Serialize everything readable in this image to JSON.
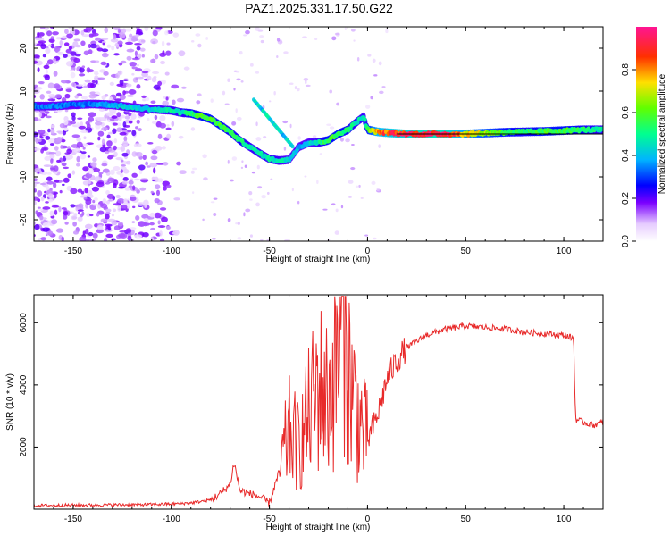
{
  "title": "PAZ1.2025.331.17.50.G22",
  "chart_data": [
    {
      "type": "heatmap",
      "title": "PAZ1.2025.331.17.50.G22",
      "xlabel": "Height of straight line (km)",
      "ylabel": "Frequency (Hz)",
      "xlim": [
        -170,
        120
      ],
      "ylim": [
        -25,
        25
      ],
      "xticks": [
        -150,
        -100,
        -50,
        0,
        50,
        100
      ],
      "yticks": [
        -20,
        -10,
        0,
        10,
        20
      ],
      "colorbar": {
        "label": "Normalized spectral amplitude",
        "range": [
          0,
          1
        ],
        "ticks": [
          0.0,
          0.2,
          0.4,
          0.6,
          0.8
        ],
        "colors": [
          "#ffffff",
          "#d9b3ff",
          "#7a00ff",
          "#0000ff",
          "#00c8ff",
          "#00ff80",
          "#c8ff00",
          "#ffc800",
          "#ff3000",
          "#ff2080"
        ]
      },
      "ridge": {
        "x": [
          -170,
          -160,
          -150,
          -140,
          -130,
          -120,
          -110,
          -100,
          -95,
          -90,
          -85,
          -80,
          -75,
          -70,
          -65,
          -60,
          -55,
          -50,
          -45,
          -40,
          -35,
          -30,
          -25,
          -20,
          -15,
          -10,
          -5,
          -2,
          0,
          5,
          10,
          20,
          30,
          40,
          50,
          60,
          70,
          80,
          90,
          100,
          110,
          120
        ],
        "y": [
          6.5,
          6.5,
          6.8,
          7,
          6.8,
          6.2,
          5.8,
          5.5,
          5,
          4.8,
          4.2,
          3.5,
          2,
          0.5,
          -1.5,
          -3,
          -4.5,
          -5.8,
          -6.2,
          -6,
          -3,
          -2,
          -2,
          -1.5,
          0,
          1,
          3,
          4,
          1,
          0.5,
          0.3,
          0,
          0,
          0,
          0,
          0.2,
          0.4,
          0.5,
          0.6,
          0.8,
          1,
          1
        ],
        "amp": [
          0.35,
          0.35,
          0.35,
          0.35,
          0.4,
          0.45,
          0.45,
          0.5,
          0.5,
          0.55,
          0.6,
          0.6,
          0.6,
          0.55,
          0.55,
          0.5,
          0.5,
          0.5,
          0.5,
          0.45,
          0.4,
          0.45,
          0.5,
          0.6,
          0.6,
          0.55,
          0.5,
          0.5,
          0.6,
          0.85,
          0.9,
          0.95,
          1,
          1,
          0.8,
          0.7,
          0.6,
          0.55,
          0.6,
          0.6,
          0.55,
          0.5
        ]
      },
      "noise_region_x": [
        -170,
        -90
      ]
    },
    {
      "type": "line",
      "xlabel": "Height of straight line (km)",
      "ylabel": "SNR (10 * v/v)",
      "xlim": [
        -170,
        120
      ],
      "ylim": [
        0,
        6900
      ],
      "xticks": [
        -150,
        -100,
        -50,
        0,
        50,
        100
      ],
      "yticks": [
        2000,
        4000,
        6000
      ],
      "color": "#e82a2a",
      "series": [
        {
          "name": "SNR",
          "x": [
            -170,
            -150,
            -130,
            -110,
            -100,
            -90,
            -80,
            -75,
            -70,
            -68,
            -65,
            -60,
            -55,
            -50,
            -45,
            -40,
            -35,
            -30,
            -25,
            -20,
            -15,
            -12,
            -10,
            -5,
            0,
            5,
            10,
            15,
            20,
            30,
            40,
            50,
            60,
            70,
            80,
            90,
            100,
            105,
            106,
            110,
            115,
            120
          ],
          "y": [
            120,
            130,
            140,
            150,
            170,
            200,
            300,
            500,
            800,
            1500,
            600,
            500,
            400,
            200,
            1200,
            2500,
            2000,
            3000,
            4000,
            3500,
            5000,
            6800,
            4500,
            3000,
            2200,
            3000,
            4200,
            4800,
            5200,
            5600,
            5800,
            5900,
            5850,
            5800,
            5700,
            5650,
            5600,
            5500,
            2900,
            2800,
            2700,
            2800
          ]
        }
      ]
    }
  ]
}
